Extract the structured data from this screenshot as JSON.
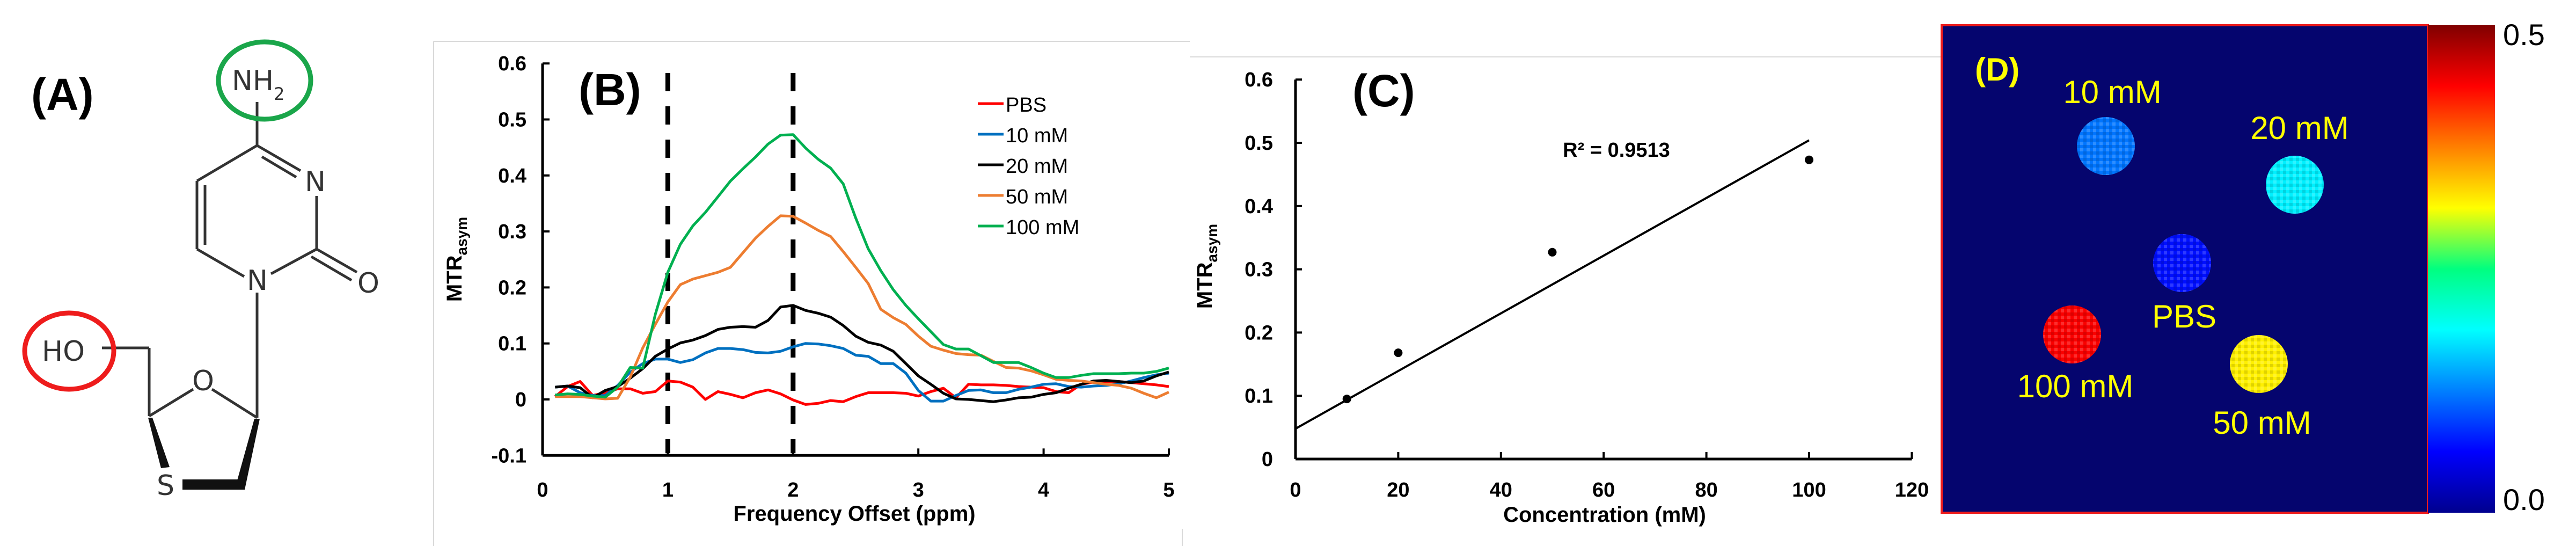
{
  "panel_a": {
    "label": "(A)",
    "atoms": {
      "amine_main": "NH",
      "amine_sub": "2",
      "n3": "N",
      "n1": "N",
      "carbonyl_o": "O",
      "ring_o": "O",
      "hydroxyl": "HO",
      "sulfur": "S"
    },
    "highlight_colors": {
      "amine": "#1aa64a",
      "hydroxyl": "#ee1c1c"
    }
  },
  "chart_data": [
    {
      "type": "line",
      "panel_label": "(B)",
      "xlabel": "Frequency Offset (ppm)",
      "ylabel_main": "MTR",
      "ylabel_sub": "asym",
      "xlim": [
        0,
        5
      ],
      "ylim": [
        -0.1,
        0.6
      ],
      "xticks": [
        "0",
        "1",
        "2",
        "3",
        "4",
        "5"
      ],
      "yticks": [
        "-0.1",
        "0",
        "0.1",
        "0.2",
        "0.3",
        "0.4",
        "0.5",
        "0.6"
      ],
      "reference_lines_x": [
        1,
        2
      ],
      "grid": false,
      "legend": "top-right",
      "x": [
        0.1,
        0.2,
        0.3,
        0.4,
        0.5,
        0.6,
        0.7,
        0.8,
        0.9,
        1.0,
        1.1,
        1.2,
        1.3,
        1.4,
        1.5,
        1.6,
        1.7,
        1.8,
        1.9,
        2.0,
        2.1,
        2.2,
        2.3,
        2.4,
        2.5,
        2.6,
        2.7,
        2.8,
        2.9,
        3.0,
        3.1,
        3.2,
        3.3,
        3.4,
        3.5,
        3.6,
        3.7,
        3.8,
        3.9,
        4.0,
        4.1,
        4.2,
        4.3,
        4.4,
        4.5,
        4.6,
        4.7,
        4.8,
        4.9,
        5.0
      ],
      "series": [
        {
          "name": "PBS",
          "color": "#ff0000",
          "values": [
            0.005,
            0.023,
            0.032,
            0.007,
            0.012,
            0.019,
            0.019,
            0.011,
            0.014,
            0.033,
            0.031,
            0.022,
            0,
            0.014,
            0.009,
            0.003,
            0.012,
            0.017,
            0.01,
            -0.001,
            -0.009,
            -0.007,
            -0.002,
            -0.004,
            0.005,
            0.012,
            0.012,
            0.012,
            0.011,
            0.006,
            0.014,
            0.02,
            0.003,
            0.027,
            0.026,
            0.026,
            0.025,
            0.023,
            0.022,
            0.021,
            0.014,
            0.012,
            0.027,
            0.031,
            0.032,
            0.032,
            0.03,
            0.028,
            0.026,
            0.023
          ]
        },
        {
          "name": "10 mM",
          "color": "#0070c0",
          "values": [
            0.022,
            0.024,
            0.012,
            0.007,
            0.007,
            0.025,
            0.049,
            0.064,
            0.072,
            0.072,
            0.066,
            0.071,
            0.083,
            0.091,
            0.091,
            0.089,
            0.084,
            0.083,
            0.086,
            0.094,
            0.1,
            0.099,
            0.096,
            0.091,
            0.079,
            0.077,
            0.064,
            0.064,
            0.047,
            0.016,
            -0.003,
            -0.003,
            0.007,
            0.016,
            0.017,
            0.012,
            0.012,
            0.018,
            0.022,
            0.027,
            0.028,
            0.023,
            0.022,
            0.024,
            0.025,
            0.028,
            0.033,
            0.039,
            0.044,
            0.047
          ]
        },
        {
          "name": "20 mM",
          "color": "#000000",
          "values": [
            0.022,
            0.024,
            0.021,
            0.003,
            0.016,
            0.023,
            0.038,
            0.055,
            0.077,
            0.09,
            0.101,
            0.106,
            0.114,
            0.125,
            0.129,
            0.13,
            0.129,
            0.141,
            0.165,
            0.168,
            0.159,
            0.154,
            0.147,
            0.132,
            0.113,
            0.102,
            0.097,
            0.086,
            0.064,
            0.042,
            0.027,
            0.011,
            0.001,
            0,
            -0.002,
            -0.004,
            -0.001,
            0.003,
            0.004,
            0.009,
            0.012,
            0.02,
            0.027,
            0.033,
            0.034,
            0.032,
            0.03,
            0.033,
            0.042,
            0.049
          ]
        },
        {
          "name": "50 mM",
          "color": "#ed7d31",
          "values": [
            0.005,
            0.005,
            0.005,
            0.003,
            0.001,
            0.002,
            0.04,
            0.092,
            0.134,
            0.174,
            0.205,
            0.215,
            0.221,
            0.227,
            0.236,
            0.262,
            0.288,
            0.309,
            0.328,
            0.327,
            0.315,
            0.302,
            0.291,
            0.264,
            0.236,
            0.207,
            0.161,
            0.146,
            0.134,
            0.113,
            0.095,
            0.088,
            0.082,
            0.08,
            0.079,
            0.068,
            0.057,
            0.056,
            0.051,
            0.044,
            0.036,
            0.034,
            0.033,
            0.03,
            0.027,
            0.025,
            0.02,
            0.011,
            0.003,
            0.013
          ]
        },
        {
          "name": "100 mM",
          "color": "#00b050",
          "values": [
            0.008,
            0.01,
            0.009,
            0.006,
            0.004,
            0.022,
            0.057,
            0.056,
            0.152,
            0.227,
            0.277,
            0.31,
            0.334,
            0.362,
            0.39,
            0.412,
            0.433,
            0.456,
            0.472,
            0.473,
            0.449,
            0.429,
            0.413,
            0.385,
            0.324,
            0.269,
            0.23,
            0.196,
            0.168,
            0.144,
            0.121,
            0.098,
            0.09,
            0.09,
            0.078,
            0.066,
            0.066,
            0.066,
            0.057,
            0.047,
            0.039,
            0.039,
            0.043,
            0.046,
            0.046,
            0.046,
            0.047,
            0.047,
            0.05,
            0.056
          ]
        }
      ]
    },
    {
      "type": "scatter",
      "panel_label": "(C)",
      "xlabel": "Concentration (mM)",
      "ylabel_main": "MTR",
      "ylabel_sub": "asym",
      "xlim": [
        0,
        120
      ],
      "ylim": [
        0,
        0.6
      ],
      "xticks": [
        "0",
        "20",
        "40",
        "60",
        "80",
        "100",
        "120"
      ],
      "yticks": [
        "0",
        "0.1",
        "0.2",
        "0.3",
        "0.4",
        "0.5",
        "0.6"
      ],
      "grid": false,
      "x": [
        10,
        20,
        50,
        100
      ],
      "y": [
        0.095,
        0.168,
        0.327,
        0.473
      ],
      "trendline": {
        "type": "linear",
        "intercept": 0.048,
        "slope": 0.00456,
        "x_range": [
          0,
          100
        ],
        "annotation": "R² = 0.9513"
      }
    },
    {
      "type": "heatmap",
      "panel_label": "(D)",
      "colormap": "jet",
      "colorbar": {
        "min_label": "0.0",
        "max_label": "0.5",
        "min": 0.0,
        "max": 0.5
      },
      "background_color": "#05056e",
      "border_color": "#ee1c1c",
      "label_color": "#ffff00",
      "spots": [
        {
          "label": "10 mM",
          "approx_value": 0.12
        },
        {
          "label": "20 mM",
          "approx_value": 0.18
        },
        {
          "label": "PBS",
          "approx_value": 0.07
        },
        {
          "label": "100 mM",
          "approx_value": 0.44
        },
        {
          "label": "50 mM",
          "approx_value": 0.32
        }
      ]
    }
  ]
}
